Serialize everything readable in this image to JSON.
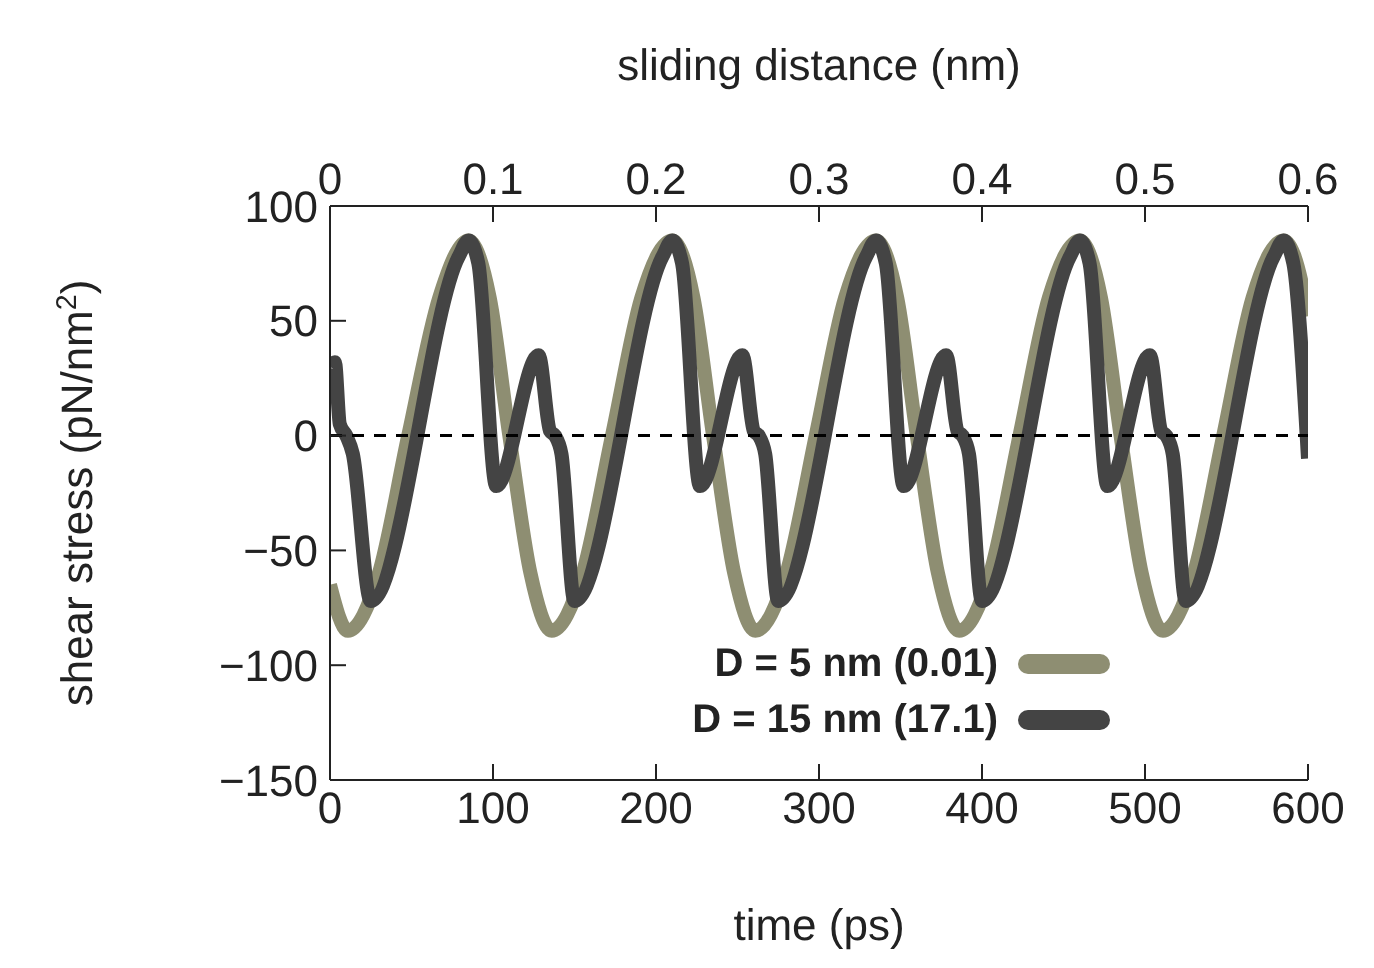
{
  "chart_data": {
    "type": "line",
    "xlabel": "time (ps)",
    "ylabel": "shear stress (pN/nm$^{2}$)",
    "x2label": "sliding distance (nm)",
    "xlim": [
      0,
      600
    ],
    "xticks": [
      0,
      100,
      200,
      300,
      400,
      500,
      600
    ],
    "x2lim": [
      0,
      0.6
    ],
    "x2ticks": [
      0,
      0.1,
      0.2,
      0.3,
      0.4,
      0.5,
      0.6
    ],
    "ylim": [
      -150,
      100
    ],
    "yticks": [
      -150,
      -100,
      -50,
      0,
      50,
      100
    ],
    "grid": false,
    "legend": "bottom right",
    "marker": "none",
    "line_style": "solid",
    "ref_lines": [
      {
        "axis": "y",
        "value": 0,
        "color": "#000000",
        "line_style": "dashed"
      }
    ],
    "series": [
      {
        "name": "D = 5 nm (0.01)",
        "color": "#8e8e72",
        "x": [
          0,
          11,
          30,
          48,
          67,
          85,
          98,
          110,
          123,
          136,
          155,
          173,
          191,
          210,
          223,
          235,
          248,
          261,
          280,
          298,
          316,
          335,
          348,
          360,
          373,
          386,
          405,
          423,
          441,
          460,
          473,
          485,
          498,
          511,
          530,
          548,
          566,
          585,
          598,
          600
        ],
        "values": [
          -65,
          -85,
          -60,
          0,
          60,
          85,
          60,
          0,
          -60,
          -85,
          -60,
          0,
          60,
          85,
          60,
          0,
          -60,
          -85,
          -60,
          0,
          60,
          85,
          60,
          0,
          -60,
          -85,
          -60,
          0,
          60,
          85,
          60,
          0,
          -60,
          -85,
          -60,
          0,
          60,
          85,
          60,
          52
        ]
      },
      {
        "name": "D = 15 nm (17.1)",
        "color": "#444444",
        "x": [
          0,
          3,
          6,
          10,
          14,
          25,
          79,
          85,
          91,
          102,
          128,
          135,
          138,
          142,
          150,
          204,
          210,
          216,
          227,
          253,
          260,
          263,
          267,
          275,
          329,
          335,
          341,
          352,
          378,
          385,
          388,
          392,
          400,
          454,
          460,
          466,
          477,
          503,
          510,
          513,
          517,
          525,
          579,
          585,
          591,
          600
        ],
        "values": [
          30,
          32,
          5,
          0,
          -8,
          -72,
          78,
          85,
          75,
          -22,
          35,
          2,
          0,
          -8,
          -72,
          78,
          85,
          75,
          -22,
          35,
          2,
          0,
          -8,
          -72,
          78,
          85,
          75,
          -22,
          35,
          2,
          0,
          -8,
          -72,
          78,
          85,
          75,
          -22,
          35,
          2,
          0,
          -8,
          -72,
          78,
          85,
          75,
          -10
        ]
      }
    ]
  }
}
